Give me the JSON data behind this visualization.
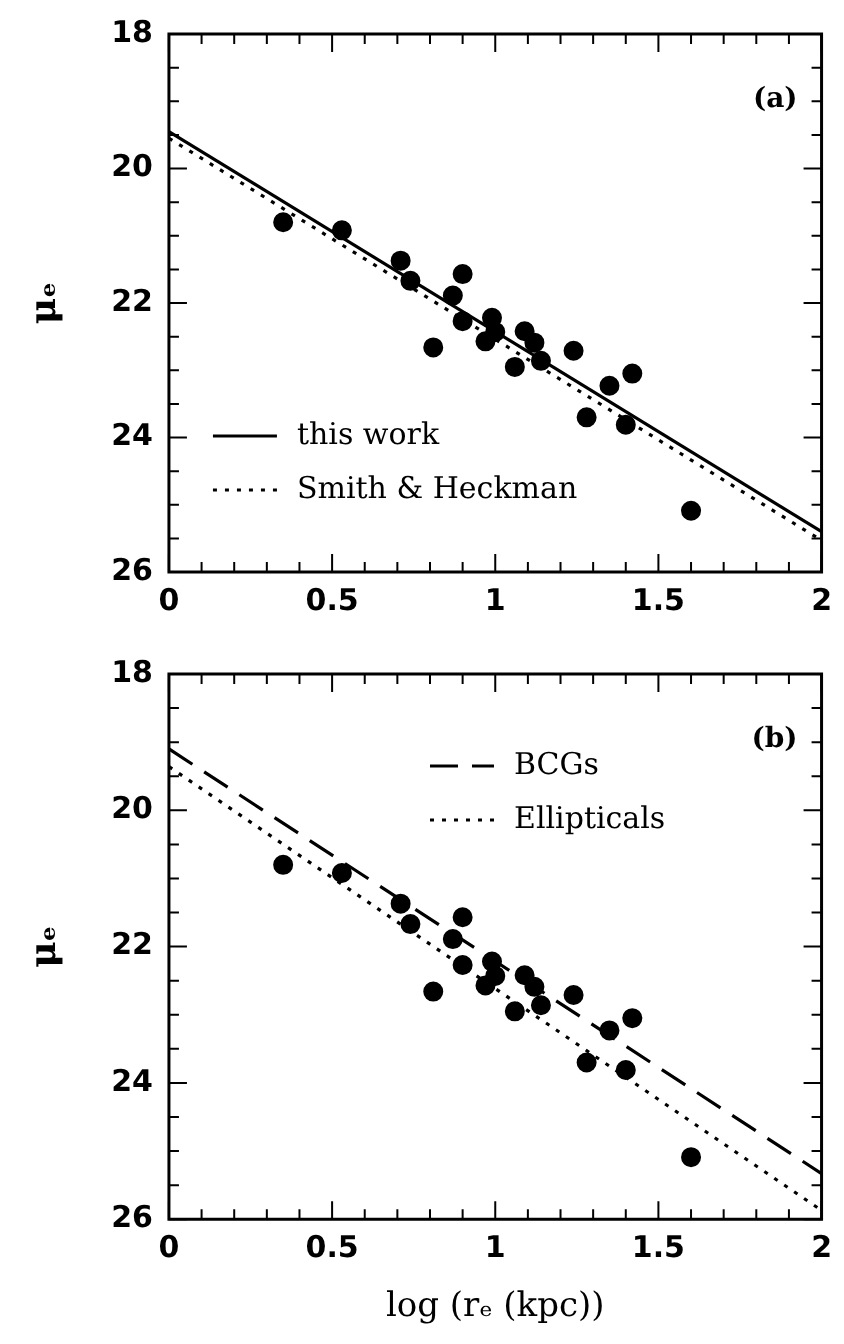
{
  "chart_data": [
    {
      "type": "scatter",
      "ylabel": "μₑ",
      "annotations": [
        "(a)"
      ],
      "xlim": [
        0,
        2
      ],
      "ylim": [
        26,
        18
      ],
      "xticks": [
        0,
        {
          "value": 0.1,
          "label": null
        },
        {
          "value": 0.2,
          "label": null
        },
        {
          "value": 0.3,
          "label": null
        },
        {
          "value": 0.4,
          "label": null
        },
        0.5,
        {
          "value": 0.6,
          "label": null
        },
        {
          "value": 0.7,
          "label": null
        },
        {
          "value": 0.8,
          "label": null
        },
        {
          "value": 0.9,
          "label": null
        },
        1,
        {
          "value": 1.1,
          "label": null
        },
        {
          "value": 1.2,
          "label": null
        },
        {
          "value": 1.3,
          "label": null
        },
        {
          "value": 1.4,
          "label": null
        },
        1.5,
        {
          "value": 1.6,
          "label": null
        },
        {
          "value": 1.7,
          "label": null
        },
        {
          "value": 1.8,
          "label": null
        },
        {
          "value": 1.9,
          "label": null
        },
        2
      ],
      "yticks": [
        18,
        {
          "value": 18.5,
          "label": null
        },
        {
          "value": 19,
          "label": null
        },
        {
          "value": 19.5,
          "label": null
        },
        20,
        {
          "value": 20.5,
          "label": null
        },
        {
          "value": 21,
          "label": null
        },
        {
          "value": 21.5,
          "label": null
        },
        22,
        {
          "value": 22.5,
          "label": null
        },
        {
          "value": 23,
          "label": null
        },
        {
          "value": 23.5,
          "label": null
        },
        24,
        {
          "value": 24.5,
          "label": null
        },
        {
          "value": 25,
          "label": null
        },
        {
          "value": 25.5,
          "label": null
        },
        26
      ],
      "legend": "bottom left",
      "grid": false,
      "series": [
        {
          "type": "scatter",
          "color": "#000000",
          "marker": "circle",
          "x": [
            0.35,
            0.53,
            0.71,
            0.74,
            0.81,
            0.87,
            0.9,
            0.9,
            0.97,
            0.99,
            1.0,
            1.06,
            1.09,
            1.12,
            1.14,
            1.24,
            1.28,
            1.35,
            1.4,
            1.42,
            1.6
          ],
          "values": [
            20.8,
            20.92,
            21.37,
            21.67,
            22.66,
            21.89,
            21.57,
            22.27,
            22.57,
            22.22,
            22.43,
            22.95,
            22.42,
            22.59,
            22.86,
            22.71,
            23.7,
            23.23,
            23.81,
            23.05,
            25.09
          ]
        },
        {
          "type": "line",
          "name": "this work",
          "color": "#000000",
          "line_style": "solid",
          "x": [
            0,
            2
          ],
          "values": [
            19.45,
            25.4
          ]
        },
        {
          "type": "line",
          "name": "Smith & Heckman",
          "color": "#000000",
          "line_style": "dotted",
          "x": [
            0,
            2
          ],
          "values": [
            19.55,
            25.53
          ]
        }
      ]
    },
    {
      "type": "scatter",
      "ylabel": "μₑ",
      "xlabel": "log (rₑ (kpc))",
      "annotations": [
        "(b)"
      ],
      "xlim": [
        0,
        2
      ],
      "ylim": [
        26,
        18
      ],
      "xticks": [
        0,
        {
          "value": 0.1,
          "label": null
        },
        {
          "value": 0.2,
          "label": null
        },
        {
          "value": 0.3,
          "label": null
        },
        {
          "value": 0.4,
          "label": null
        },
        0.5,
        {
          "value": 0.6,
          "label": null
        },
        {
          "value": 0.7,
          "label": null
        },
        {
          "value": 0.8,
          "label": null
        },
        {
          "value": 0.9,
          "label": null
        },
        1,
        {
          "value": 1.1,
          "label": null
        },
        {
          "value": 1.2,
          "label": null
        },
        {
          "value": 1.3,
          "label": null
        },
        {
          "value": 1.4,
          "label": null
        },
        1.5,
        {
          "value": 1.6,
          "label": null
        },
        {
          "value": 1.7,
          "label": null
        },
        {
          "value": 1.8,
          "label": null
        },
        {
          "value": 1.9,
          "label": null
        },
        2
      ],
      "yticks": [
        18,
        {
          "value": 18.5,
          "label": null
        },
        {
          "value": 19,
          "label": null
        },
        {
          "value": 19.5,
          "label": null
        },
        20,
        {
          "value": 20.5,
          "label": null
        },
        {
          "value": 21,
          "label": null
        },
        {
          "value": 21.5,
          "label": null
        },
        22,
        {
          "value": 22.5,
          "label": null
        },
        {
          "value": 23,
          "label": null
        },
        {
          "value": 23.5,
          "label": null
        },
        24,
        {
          "value": 24.5,
          "label": null
        },
        {
          "value": 25,
          "label": null
        },
        {
          "value": 25.5,
          "label": null
        },
        26
      ],
      "legend": "top",
      "grid": false,
      "series": [
        {
          "type": "scatter",
          "color": "#000000",
          "marker": "circle",
          "x": [
            0.35,
            0.53,
            0.71,
            0.74,
            0.81,
            0.87,
            0.9,
            0.9,
            0.97,
            0.99,
            1.0,
            1.06,
            1.09,
            1.12,
            1.14,
            1.24,
            1.28,
            1.35,
            1.4,
            1.42,
            1.6
          ],
          "values": [
            20.8,
            20.92,
            21.37,
            21.67,
            22.66,
            21.89,
            21.57,
            22.27,
            22.57,
            22.22,
            22.43,
            22.95,
            22.42,
            22.59,
            22.86,
            22.71,
            23.7,
            23.23,
            23.81,
            23.05,
            25.09
          ]
        },
        {
          "type": "line",
          "name": "BCGs",
          "color": "#000000",
          "line_style": "dashed",
          "x": [
            0,
            2
          ],
          "values": [
            19.1,
            25.33
          ]
        },
        {
          "type": "line",
          "name": "Ellipticals",
          "color": "#000000",
          "line_style": "dotted",
          "x": [
            0,
            2
          ],
          "values": [
            19.36,
            25.87
          ]
        }
      ]
    }
  ]
}
